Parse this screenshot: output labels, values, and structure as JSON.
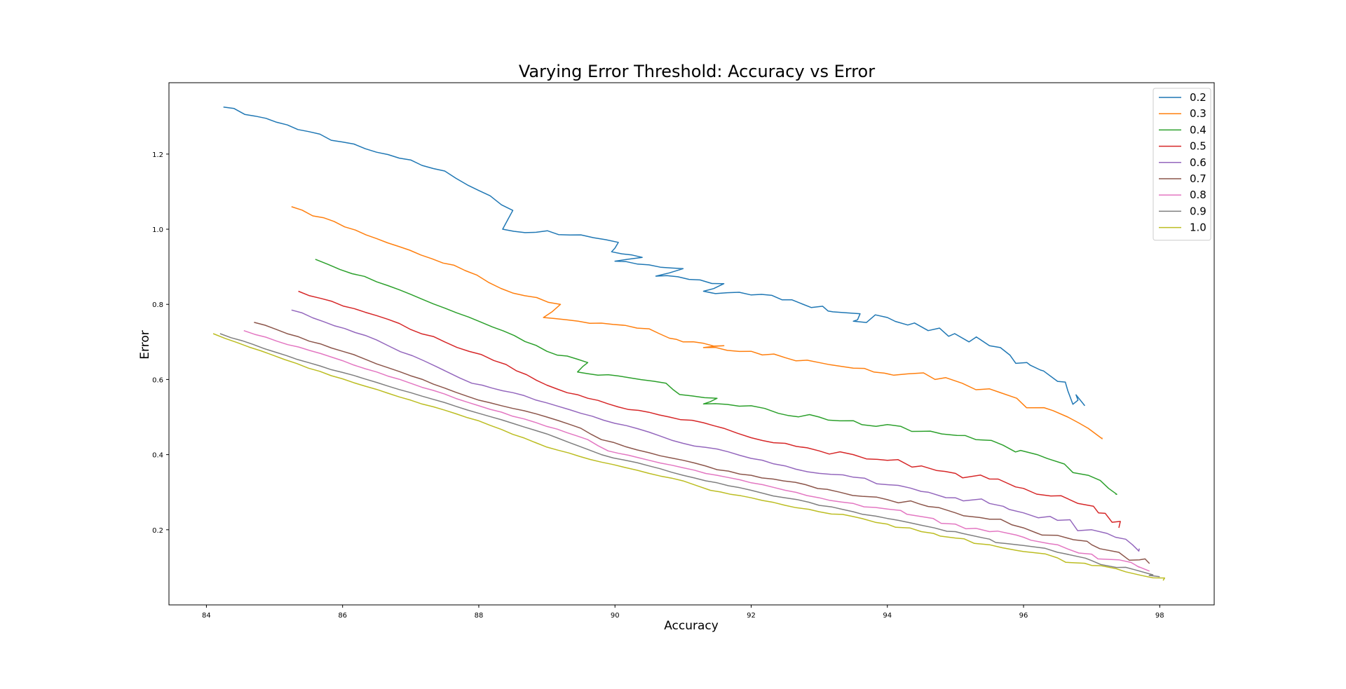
{
  "chart_data": {
    "type": "line",
    "title": "Varying Error Threshold: Accuracy vs Error",
    "xlabel": "Accuracy",
    "ylabel": "Error",
    "xlim": [
      83.45,
      98.8
    ],
    "ylim": [
      0.0,
      1.39
    ],
    "xticks": [
      84,
      86,
      88,
      90,
      92,
      94,
      96,
      98
    ],
    "yticks": [
      0.2,
      0.4,
      0.6,
      0.8,
      1.0,
      1.2
    ],
    "xtick_labels": [
      "84",
      "86",
      "88",
      "90",
      "92",
      "94",
      "96",
      "98"
    ],
    "ytick_labels": [
      "0.2",
      "0.4",
      "0.6",
      "0.8",
      "1.0",
      "1.2"
    ],
    "grid": false,
    "legend_position": "top-right",
    "series": [
      {
        "name": "0.2",
        "color": "#1f77b4",
        "points": [
          [
            84.25,
            1.325
          ],
          [
            85.5,
            1.26
          ],
          [
            86.5,
            1.205
          ],
          [
            87.5,
            1.155
          ],
          [
            88.5,
            1.05
          ],
          [
            88.35,
            1.0
          ],
          [
            89.5,
            0.985
          ],
          [
            90.05,
            0.965
          ],
          [
            89.95,
            0.94
          ],
          [
            90.4,
            0.925
          ],
          [
            90.0,
            0.915
          ],
          [
            90.5,
            0.905
          ],
          [
            91.0,
            0.895
          ],
          [
            90.6,
            0.875
          ],
          [
            91.25,
            0.865
          ],
          [
            91.6,
            0.855
          ],
          [
            91.3,
            0.835
          ],
          [
            92.0,
            0.825
          ],
          [
            92.6,
            0.812
          ],
          [
            93.05,
            0.795
          ],
          [
            93.2,
            0.78
          ],
          [
            93.6,
            0.775
          ],
          [
            93.5,
            0.755
          ],
          [
            94.0,
            0.765
          ],
          [
            94.3,
            0.745
          ],
          [
            94.6,
            0.73
          ],
          [
            94.9,
            0.715
          ],
          [
            95.2,
            0.7
          ],
          [
            95.5,
            0.69
          ],
          [
            95.8,
            0.665
          ],
          [
            96.05,
            0.645
          ],
          [
            96.25,
            0.625
          ],
          [
            96.5,
            0.595
          ],
          [
            96.65,
            0.57
          ],
          [
            96.8,
            0.545
          ],
          [
            96.9,
            0.53
          ]
        ],
        "jitter": 0.018
      },
      {
        "name": "0.3",
        "color": "#ff7f0e",
        "points": [
          [
            85.25,
            1.06
          ],
          [
            86.5,
            0.975
          ],
          [
            87.8,
            0.89
          ],
          [
            88.5,
            0.83
          ],
          [
            89.2,
            0.8
          ],
          [
            88.95,
            0.765
          ],
          [
            89.8,
            0.75
          ],
          [
            90.5,
            0.735
          ],
          [
            90.8,
            0.71
          ],
          [
            91.0,
            0.7
          ],
          [
            91.6,
            0.69
          ],
          [
            91.3,
            0.685
          ],
          [
            92.0,
            0.675
          ],
          [
            92.5,
            0.658
          ],
          [
            93.0,
            0.645
          ],
          [
            93.5,
            0.63
          ],
          [
            93.8,
            0.62
          ],
          [
            94.3,
            0.615
          ],
          [
            94.7,
            0.6
          ],
          [
            95.1,
            0.59
          ],
          [
            95.5,
            0.575
          ],
          [
            95.9,
            0.55
          ],
          [
            96.3,
            0.525
          ],
          [
            96.65,
            0.5
          ],
          [
            96.95,
            0.47
          ],
          [
            97.15,
            0.445
          ]
        ],
        "jitter": 0.012
      },
      {
        "name": "0.4",
        "color": "#2ca02c",
        "points": [
          [
            85.6,
            0.92
          ],
          [
            86.5,
            0.86
          ],
          [
            87.5,
            0.79
          ],
          [
            88.2,
            0.74
          ],
          [
            89.0,
            0.675
          ],
          [
            89.6,
            0.645
          ],
          [
            89.45,
            0.62
          ],
          [
            90.2,
            0.605
          ],
          [
            90.75,
            0.59
          ],
          [
            90.95,
            0.56
          ],
          [
            91.5,
            0.55
          ],
          [
            91.3,
            0.535
          ],
          [
            92.0,
            0.53
          ],
          [
            92.4,
            0.51
          ],
          [
            93.0,
            0.5
          ],
          [
            93.3,
            0.49
          ],
          [
            94.0,
            0.48
          ],
          [
            94.5,
            0.462
          ],
          [
            94.8,
            0.455
          ],
          [
            95.3,
            0.44
          ],
          [
            95.7,
            0.425
          ],
          [
            96.2,
            0.4
          ],
          [
            96.6,
            0.375
          ],
          [
            96.95,
            0.345
          ],
          [
            97.25,
            0.31
          ],
          [
            97.35,
            0.295
          ]
        ],
        "jitter": 0.01
      },
      {
        "name": "0.5",
        "color": "#d62728",
        "points": [
          [
            85.35,
            0.835
          ],
          [
            86.5,
            0.77
          ],
          [
            87.5,
            0.7
          ],
          [
            88.4,
            0.64
          ],
          [
            89.0,
            0.585
          ],
          [
            89.6,
            0.55
          ],
          [
            90.2,
            0.52
          ],
          [
            90.8,
            0.5
          ],
          [
            91.3,
            0.485
          ],
          [
            91.6,
            0.47
          ],
          [
            92.0,
            0.445
          ],
          [
            92.5,
            0.43
          ],
          [
            93.0,
            0.41
          ],
          [
            93.5,
            0.4
          ],
          [
            94.0,
            0.385
          ],
          [
            94.5,
            0.37
          ],
          [
            95.0,
            0.35
          ],
          [
            95.5,
            0.335
          ],
          [
            96.0,
            0.31
          ],
          [
            96.4,
            0.29
          ],
          [
            96.8,
            0.27
          ],
          [
            97.1,
            0.245
          ],
          [
            97.3,
            0.22
          ],
          [
            97.4,
            0.205
          ]
        ],
        "jitter": 0.01
      },
      {
        "name": "0.6",
        "color": "#9467bd",
        "points": [
          [
            85.25,
            0.785
          ],
          [
            86.5,
            0.705
          ],
          [
            87.9,
            0.59
          ],
          [
            88.5,
            0.565
          ],
          [
            89.5,
            0.51
          ],
          [
            90.5,
            0.46
          ],
          [
            91.0,
            0.43
          ],
          [
            91.5,
            0.415
          ],
          [
            92.0,
            0.39
          ],
          [
            92.5,
            0.37
          ],
          [
            93.0,
            0.35
          ],
          [
            93.5,
            0.34
          ],
          [
            94.0,
            0.32
          ],
          [
            94.6,
            0.3
          ],
          [
            95.0,
            0.285
          ],
          [
            95.5,
            0.27
          ],
          [
            96.0,
            0.245
          ],
          [
            96.5,
            0.225
          ],
          [
            97.0,
            0.2
          ],
          [
            97.35,
            0.18
          ],
          [
            97.6,
            0.16
          ],
          [
            97.7,
            0.15
          ]
        ],
        "jitter": 0.008
      },
      {
        "name": "0.7",
        "color": "#8c564b",
        "points": [
          [
            84.7,
            0.752
          ],
          [
            86.0,
            0.675
          ],
          [
            87.0,
            0.61
          ],
          [
            88.0,
            0.545
          ],
          [
            89.0,
            0.5
          ],
          [
            89.5,
            0.47
          ],
          [
            89.8,
            0.44
          ],
          [
            90.5,
            0.405
          ],
          [
            91.0,
            0.385
          ],
          [
            91.5,
            0.36
          ],
          [
            92.0,
            0.345
          ],
          [
            92.8,
            0.32
          ],
          [
            93.3,
            0.3
          ],
          [
            94.0,
            0.28
          ],
          [
            94.6,
            0.262
          ],
          [
            95.0,
            0.245
          ],
          [
            95.5,
            0.228
          ],
          [
            96.0,
            0.205
          ],
          [
            96.5,
            0.185
          ],
          [
            97.0,
            0.16
          ],
          [
            97.4,
            0.14
          ],
          [
            97.7,
            0.12
          ],
          [
            97.85,
            0.11
          ]
        ],
        "jitter": 0.007
      },
      {
        "name": "0.8",
        "color": "#e377c2",
        "points": [
          [
            84.55,
            0.73
          ],
          [
            86.0,
            0.65
          ],
          [
            87.0,
            0.59
          ],
          [
            88.0,
            0.53
          ],
          [
            89.0,
            0.475
          ],
          [
            89.6,
            0.44
          ],
          [
            89.9,
            0.41
          ],
          [
            90.5,
            0.385
          ],
          [
            91.0,
            0.365
          ],
          [
            91.5,
            0.345
          ],
          [
            92.0,
            0.325
          ],
          [
            92.5,
            0.305
          ],
          [
            93.0,
            0.285
          ],
          [
            93.5,
            0.27
          ],
          [
            94.0,
            0.255
          ],
          [
            94.5,
            0.235
          ],
          [
            95.0,
            0.215
          ],
          [
            95.5,
            0.195
          ],
          [
            96.0,
            0.18
          ],
          [
            96.5,
            0.16
          ],
          [
            97.0,
            0.135
          ],
          [
            97.4,
            0.12
          ],
          [
            97.7,
            0.1
          ],
          [
            97.85,
            0.09
          ]
        ],
        "jitter": 0.006
      },
      {
        "name": "0.9",
        "color": "#7f7f7f",
        "points": [
          [
            84.2,
            0.722
          ],
          [
            85.5,
            0.645
          ],
          [
            87.0,
            0.565
          ],
          [
            88.0,
            0.51
          ],
          [
            89.0,
            0.455
          ],
          [
            89.8,
            0.4
          ],
          [
            90.5,
            0.37
          ],
          [
            91.0,
            0.345
          ],
          [
            91.5,
            0.325
          ],
          [
            92.0,
            0.305
          ],
          [
            92.5,
            0.285
          ],
          [
            93.0,
            0.265
          ],
          [
            93.5,
            0.248
          ],
          [
            94.0,
            0.23
          ],
          [
            94.5,
            0.212
          ],
          [
            95.0,
            0.195
          ],
          [
            95.5,
            0.175
          ],
          [
            96.0,
            0.158
          ],
          [
            96.5,
            0.14
          ],
          [
            97.0,
            0.118
          ],
          [
            97.5,
            0.1
          ],
          [
            97.9,
            0.08
          ],
          [
            98.0,
            0.075
          ]
        ],
        "jitter": 0.005
      },
      {
        "name": "1.0",
        "color": "#bcbd22",
        "points": [
          [
            84.1,
            0.722
          ],
          [
            85.5,
            0.63
          ],
          [
            87.0,
            0.545
          ],
          [
            88.0,
            0.49
          ],
          [
            89.0,
            0.42
          ],
          [
            89.8,
            0.38
          ],
          [
            90.5,
            0.35
          ],
          [
            91.0,
            0.33
          ],
          [
            91.4,
            0.305
          ],
          [
            92.0,
            0.285
          ],
          [
            92.5,
            0.265
          ],
          [
            93.0,
            0.248
          ],
          [
            93.5,
            0.235
          ],
          [
            94.0,
            0.215
          ],
          [
            94.5,
            0.195
          ],
          [
            95.0,
            0.178
          ],
          [
            95.5,
            0.16
          ],
          [
            96.0,
            0.142
          ],
          [
            96.5,
            0.125
          ],
          [
            97.0,
            0.105
          ],
          [
            97.5,
            0.088
          ],
          [
            97.9,
            0.072
          ],
          [
            98.05,
            0.065
          ]
        ],
        "jitter": 0.004
      }
    ]
  }
}
